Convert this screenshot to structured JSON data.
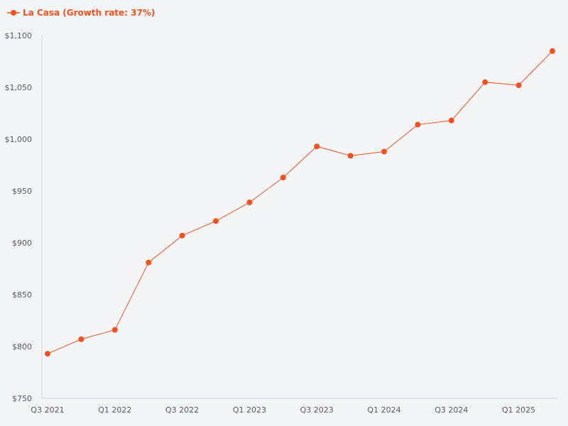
{
  "chart_data": {
    "type": "line",
    "title": "",
    "xlabel": "",
    "ylabel": "",
    "x": [
      "Q3 2021",
      "Q4 2021",
      "Q1 2022",
      "Q2 2022",
      "Q3 2022",
      "Q4 2022",
      "Q1 2023",
      "Q2 2023",
      "Q3 2023",
      "Q4 2023",
      "Q1 2024",
      "Q2 2024",
      "Q3 2024",
      "Q4 2024",
      "Q1 2025",
      "Q2 2025"
    ],
    "x_tick_labels": [
      "Q3 2021",
      "Q1 2022",
      "Q3 2022",
      "Q1 2023",
      "Q3 2023",
      "Q1 2024",
      "Q3 2024",
      "Q1 2025"
    ],
    "y_tick_values": [
      750,
      800,
      850,
      900,
      950,
      1000,
      1050,
      1100
    ],
    "y_tick_labels": [
      "$750",
      "$800",
      "$850",
      "$900",
      "$950",
      "$1,000",
      "$1,050",
      "$1,100"
    ],
    "ylim": [
      750,
      1100
    ],
    "grid": false,
    "legend_position": "top-left",
    "series": [
      {
        "name": "La Casa (Growth rate: 37%)",
        "color": "#f4511e",
        "values": [
          793,
          807,
          816,
          881,
          907,
          921,
          939,
          963,
          993,
          984,
          988,
          1014,
          1018,
          1055,
          1052,
          1085
        ]
      }
    ]
  }
}
